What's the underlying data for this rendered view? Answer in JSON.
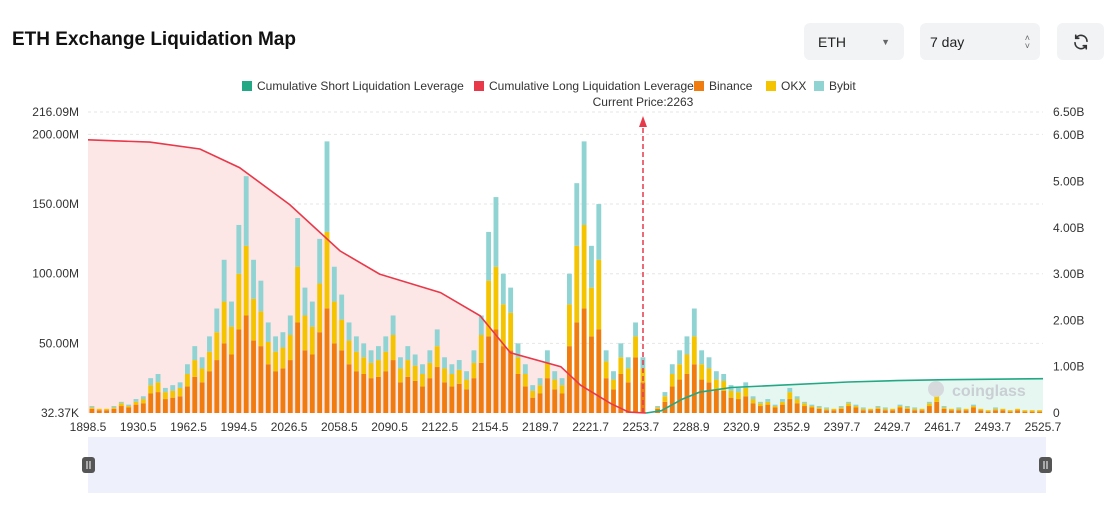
{
  "header": {
    "title": "ETH Exchange Liquidation Map",
    "coin_select": "ETH",
    "period_select": "7 day",
    "refresh_icon": "refresh-icon"
  },
  "watermark": "coinglass",
  "chart_data": {
    "type": "bar",
    "current_price_label": "Current Price:2263",
    "current_price": 2263,
    "legend": [
      {
        "name": "Cumulative Short Liquidation Leverage",
        "color": "#22a884"
      },
      {
        "name": "Cumulative Long Liquidation Leverage",
        "color": "#e8394a"
      },
      {
        "name": "Binance",
        "color": "#f07c10"
      },
      {
        "name": "OKX",
        "color": "#f5c400"
      },
      {
        "name": "Bybit",
        "color": "#8fd3d3"
      }
    ],
    "x_ticks": [
      "1898.5",
      "1930.5",
      "1962.5",
      "1994.5",
      "2026.5",
      "2058.5",
      "2090.5",
      "2122.5",
      "2154.5",
      "2189.7",
      "2221.7",
      "2253.7",
      "2288.9",
      "2320.9",
      "2352.9",
      "2397.7",
      "2429.7",
      "2461.7",
      "2493.7",
      "2525.7"
    ],
    "x_range": [
      1898.5,
      2525.7
    ],
    "left_axis": {
      "unit": "M",
      "range": [
        0,
        216.09
      ],
      "ticks": [
        {
          "v": 216.09,
          "label": "216.09M"
        },
        {
          "v": 200,
          "label": "200.00M"
        },
        {
          "v": 150,
          "label": "150.00M"
        },
        {
          "v": 100,
          "label": "100.00M"
        },
        {
          "v": 50,
          "label": "50.00M"
        },
        {
          "v": 0,
          "label": "32.37K"
        }
      ]
    },
    "right_axis": {
      "unit": "B",
      "range": [
        0,
        6.5
      ],
      "ticks": [
        {
          "v": 6.5,
          "label": "6.50B"
        },
        {
          "v": 6,
          "label": "6.00B"
        },
        {
          "v": 5,
          "label": "5.00B"
        },
        {
          "v": 4,
          "label": "4.00B"
        },
        {
          "v": 3,
          "label": "3.00B"
        },
        {
          "v": 2,
          "label": "2.00B"
        },
        {
          "v": 1,
          "label": "1.00B"
        },
        {
          "v": 0,
          "label": "0"
        }
      ]
    },
    "series": [
      {
        "name": "Binance",
        "values": [
          3,
          2,
          2,
          3,
          5,
          4,
          6,
          7,
          14,
          15,
          10,
          11,
          12,
          19,
          26,
          22,
          30,
          38,
          50,
          42,
          60,
          70,
          52,
          48,
          35,
          30,
          32,
          38,
          65,
          45,
          42,
          58,
          75,
          50,
          45,
          35,
          30,
          28,
          25,
          26,
          30,
          38,
          22,
          26,
          23,
          19,
          25,
          33,
          22,
          19,
          21,
          17,
          25,
          36,
          55,
          60,
          48,
          45,
          28,
          19,
          11,
          14,
          25,
          17,
          14,
          48,
          65,
          75,
          55,
          60,
          25,
          17,
          28,
          22,
          40,
          22,
          0,
          3,
          8,
          19,
          24,
          28,
          35,
          24,
          22,
          17,
          16,
          11,
          10,
          12,
          7,
          5,
          6,
          4,
          6,
          10,
          7,
          5,
          4,
          3,
          2,
          2,
          3,
          5,
          4,
          2,
          2,
          3,
          2,
          2,
          4,
          3,
          2,
          2,
          5,
          8,
          3,
          2,
          2,
          2,
          4,
          2,
          1,
          2,
          2,
          1,
          2,
          1,
          1,
          1
        ]
      },
      {
        "name": "OKX",
        "values": [
          1,
          1,
          1,
          1,
          2,
          1,
          2,
          3,
          6,
          7,
          5,
          5,
          6,
          9,
          12,
          10,
          14,
          20,
          30,
          20,
          40,
          50,
          30,
          25,
          16,
          14,
          15,
          18,
          40,
          25,
          20,
          35,
          55,
          30,
          22,
          17,
          14,
          12,
          11,
          12,
          14,
          18,
          10,
          12,
          11,
          9,
          11,
          15,
          10,
          9,
          10,
          7,
          11,
          20,
          40,
          45,
          30,
          27,
          12,
          9,
          5,
          6,
          11,
          7,
          6,
          30,
          55,
          60,
          35,
          50,
          12,
          7,
          12,
          10,
          15,
          10,
          0,
          1,
          4,
          9,
          11,
          14,
          20,
          11,
          10,
          7,
          7,
          5,
          5,
          6,
          3,
          2,
          2,
          1,
          2,
          5,
          3,
          2,
          1,
          1,
          1,
          1,
          1,
          2,
          1,
          1,
          1,
          1,
          1,
          1,
          1,
          1,
          1,
          1,
          2,
          4,
          1,
          1,
          1,
          1,
          1,
          1,
          1,
          1,
          1,
          1,
          1,
          1,
          1,
          1
        ]
      },
      {
        "name": "Bybit",
        "values": [
          1,
          0,
          0,
          1,
          1,
          1,
          2,
          2,
          5,
          6,
          3,
          4,
          4,
          7,
          10,
          8,
          11,
          17,
          30,
          18,
          35,
          50,
          28,
          22,
          14,
          11,
          11,
          14,
          35,
          20,
          18,
          32,
          65,
          25,
          18,
          13,
          11,
          10,
          9,
          10,
          11,
          14,
          8,
          10,
          8,
          7,
          9,
          12,
          8,
          7,
          7,
          6,
          9,
          14,
          35,
          50,
          22,
          18,
          10,
          7,
          4,
          5,
          9,
          6,
          5,
          22,
          45,
          60,
          30,
          40,
          8,
          6,
          10,
          8,
          10,
          8,
          0,
          1,
          3,
          7,
          10,
          13,
          20,
          10,
          8,
          6,
          5,
          4,
          3,
          4,
          2,
          1,
          2,
          1,
          2,
          3,
          2,
          1,
          1,
          1,
          1,
          0,
          1,
          1,
          1,
          1,
          0,
          1,
          1,
          0,
          1,
          1,
          1,
          0,
          1,
          3,
          1,
          0,
          1,
          0,
          1,
          0,
          0,
          1,
          0,
          0,
          0,
          0,
          0,
          0
        ]
      }
    ],
    "cumulative_long": [
      [
        1898.5,
        5.9
      ],
      [
        1939,
        5.85
      ],
      [
        1972,
        5.7
      ],
      [
        1998,
        5.3
      ],
      [
        2031,
        4.5
      ],
      [
        2064,
        3.5
      ],
      [
        2090,
        3.0
      ],
      [
        2130,
        2.6
      ],
      [
        2156,
        2.1
      ],
      [
        2176,
        1.3
      ],
      [
        2209,
        1.0
      ],
      [
        2222,
        0.6
      ],
      [
        2242,
        0.2
      ],
      [
        2253.7,
        0.02
      ],
      [
        2265,
        0
      ]
    ],
    "cumulative_short": [
      [
        2265,
        0
      ],
      [
        2275,
        0.05
      ],
      [
        2288.9,
        0.3
      ],
      [
        2300,
        0.45
      ],
      [
        2320.9,
        0.55
      ],
      [
        2352.9,
        0.6
      ],
      [
        2397.7,
        0.67
      ],
      [
        2429.7,
        0.7
      ],
      [
        2461.7,
        0.72
      ],
      [
        2525.7,
        0.74
      ]
    ]
  }
}
